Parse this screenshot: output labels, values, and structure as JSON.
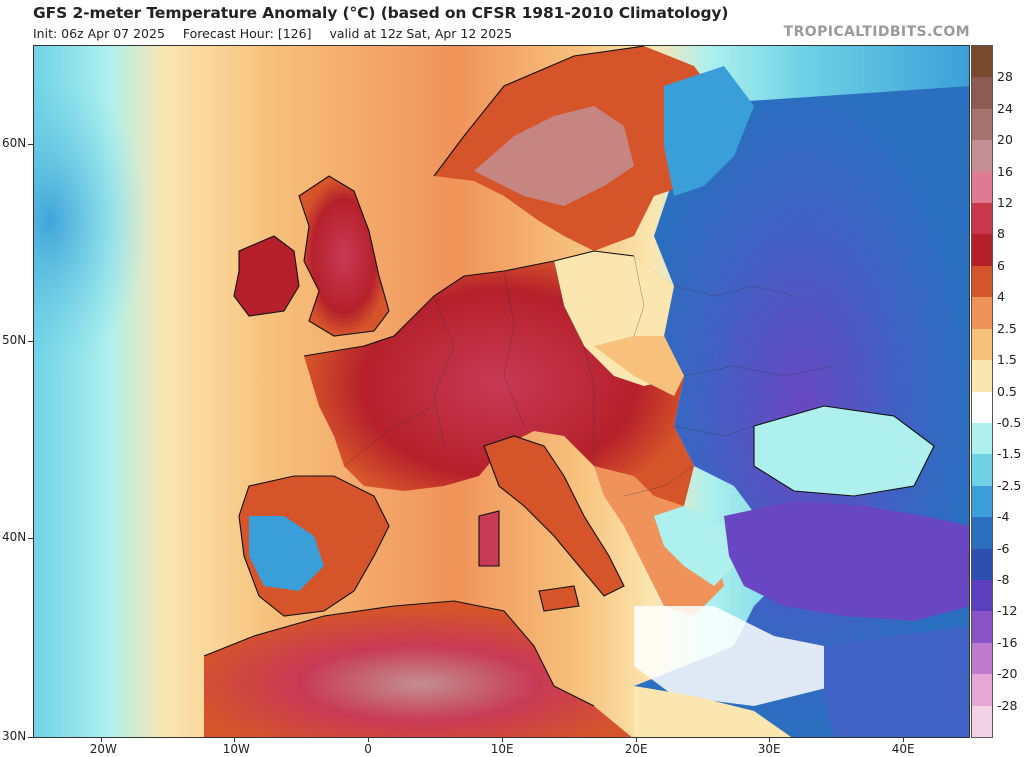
{
  "header": {
    "title": "GFS 2-meter Temperature Anomaly (°C) (based on CFSR 1981-2010 Climatology)",
    "init": "Init: 06z Apr 07 2025",
    "forecast_hour": "Forecast Hour: [126]",
    "valid": "valid at 12z Sat, Apr 12 2025",
    "brand": "TROPICALTIDBITS.COM"
  },
  "axes": {
    "lat_labels": [
      "60N",
      "50N",
      "40N",
      "30N"
    ],
    "lon_labels": [
      "20W",
      "10W",
      "0",
      "10E",
      "20E",
      "30E",
      "40E"
    ]
  },
  "colorbar": {
    "labels": [
      "28",
      "24",
      "20",
      "16",
      "12",
      "8",
      "6",
      "4",
      "2.5",
      "1.5",
      "0.5",
      "-0.5",
      "-1.5",
      "-2.5",
      "-4",
      "-6",
      "-8",
      "-12",
      "-16",
      "-20",
      "-28"
    ],
    "colors": [
      "#7a4a2e",
      "#8e5a52",
      "#a8736e",
      "#c48e92",
      "#e07a92",
      "#c8374a",
      "#b5202b",
      "#d6542a",
      "#f0935a",
      "#f7c17c",
      "#fbe6b0",
      "#ffffff",
      "#aef0ee",
      "#6fd2e6",
      "#3a9fd8",
      "#2a6fc0",
      "#2f4fb0",
      "#5a3fbf",
      "#8a54c8",
      "#c07ad0",
      "#e6a6d6",
      "#f2d3e6"
    ]
  },
  "palette": {
    "ocean_warm": "#f5c78a",
    "ocean_cool": "#7fdce6",
    "land_hot": "#c83a55",
    "land_warm": "#d9542c",
    "land_neutral": "#fbe6b0",
    "land_cold": "#3f62c4",
    "land_very_cold": "#6a47c2"
  }
}
